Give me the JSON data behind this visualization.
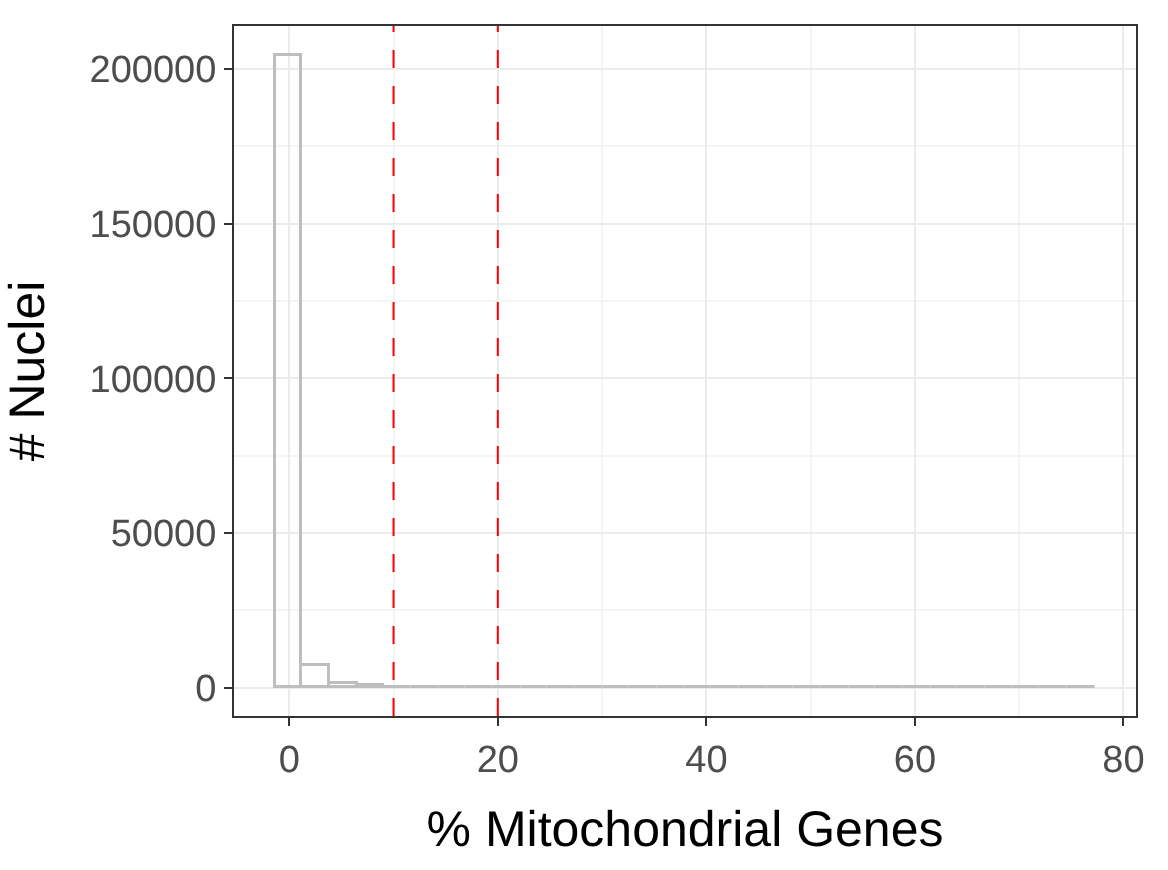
{
  "chart_data": {
    "type": "histogram",
    "xlabel": "% Mitochondrial Genes",
    "ylabel": "# Nuclei",
    "bins": [
      -1.31,
      1.31,
      3.93,
      6.55,
      9.17,
      11.79,
      14.41,
      17.03,
      19.65,
      22.27,
      24.89,
      27.51,
      30.13,
      32.75,
      35.37,
      37.99,
      40.61,
      43.23,
      45.85,
      48.47,
      51.09,
      53.71,
      56.33,
      58.95,
      61.57,
      64.19,
      66.81,
      69.43,
      72.05,
      74.67,
      77.29
    ],
    "values": [
      204000,
      7000,
      1200,
      400,
      200,
      100,
      100,
      100,
      0,
      0,
      0,
      0,
      0,
      0,
      0,
      0,
      0,
      0,
      0,
      0,
      0,
      0,
      0,
      0,
      0,
      0,
      0,
      0,
      0,
      0
    ],
    "color": "#bebebe",
    "xlim": [
      -5.3,
      81.2
    ],
    "ylim": [
      -9150,
      213900
    ],
    "xticks": [
      0,
      20,
      40,
      60,
      80
    ],
    "yticks": [
      0,
      50000,
      100000,
      150000,
      200000
    ],
    "grid": true,
    "ref_lines": [
      {
        "axis": "x",
        "value": 10,
        "color": "#ff0000",
        "line_style": "dashed"
      },
      {
        "axis": "x",
        "value": 20,
        "color": "#ff0000",
        "line_style": "dashed"
      }
    ]
  }
}
